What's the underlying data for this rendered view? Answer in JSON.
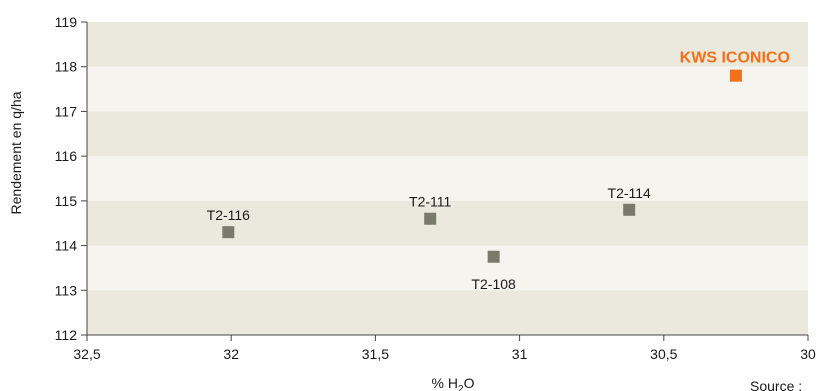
{
  "chart_data": {
    "type": "scatter",
    "xlabel_main": "% H",
    "xlabel_sub": "2",
    "xlabel_tail": "O",
    "ylabel": "Rendement en q/ha",
    "xlim": [
      32.5,
      30
    ],
    "x_reversed": true,
    "ylim": [
      112,
      119
    ],
    "x_ticks": [
      32.5,
      32,
      31.5,
      31,
      30.5,
      30
    ],
    "x_tick_labels": [
      "32,5",
      "32",
      "31,5",
      "31",
      "30,5",
      "30"
    ],
    "y_ticks": [
      112,
      113,
      114,
      115,
      116,
      117,
      118,
      119
    ],
    "y_tick_labels": [
      "112",
      "113",
      "114",
      "115",
      "116",
      "117",
      "118",
      "119"
    ],
    "grid": "horizontal bands",
    "band_colors": [
      "#ebe9de",
      "#f5f4ee"
    ],
    "points": [
      {
        "label": "T2-116",
        "x": 32.01,
        "y": 114.3,
        "color": "#7a7a6c",
        "label_pos": "above"
      },
      {
        "label": "T2-111",
        "x": 31.31,
        "y": 114.6,
        "color": "#7a7a6c",
        "label_pos": "above"
      },
      {
        "label": "T2-108",
        "x": 31.09,
        "y": 113.75,
        "color": "#7a7a6c",
        "label_pos": "below"
      },
      {
        "label": "T2-114",
        "x": 30.62,
        "y": 114.8,
        "color": "#7a7a6c",
        "label_pos": "above"
      },
      {
        "label": "KWS ICONICO",
        "x": 30.25,
        "y": 117.8,
        "color": "#f07118",
        "label_pos": "above",
        "highlight": true
      }
    ],
    "source_note": "Source :"
  }
}
